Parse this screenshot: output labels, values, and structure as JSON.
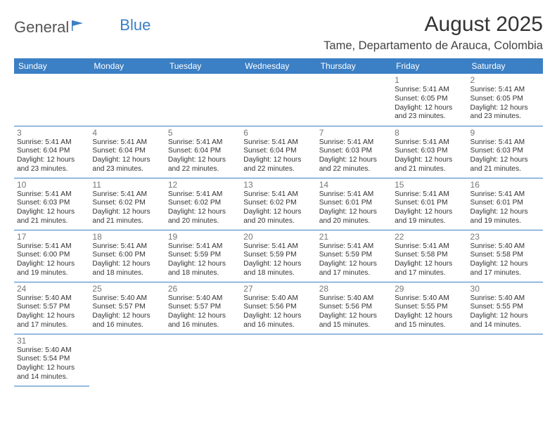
{
  "logo": {
    "text1": "General",
    "text2": "Blue"
  },
  "title": "August 2025",
  "location": "Tame, Departamento de Arauca, Colombia",
  "colors": {
    "header_bg": "#3b7fc4",
    "header_text": "#ffffff",
    "border": "#3b7fc4",
    "daynum": "#777777",
    "body_text": "#333333",
    "background": "#ffffff"
  },
  "day_headers": [
    "Sunday",
    "Monday",
    "Tuesday",
    "Wednesday",
    "Thursday",
    "Friday",
    "Saturday"
  ],
  "first_weekday": 5,
  "num_days": 31,
  "days": {
    "1": {
      "sunrise": "5:41 AM",
      "sunset": "6:05 PM",
      "daylight": "12 hours and 23 minutes."
    },
    "2": {
      "sunrise": "5:41 AM",
      "sunset": "6:05 PM",
      "daylight": "12 hours and 23 minutes."
    },
    "3": {
      "sunrise": "5:41 AM",
      "sunset": "6:04 PM",
      "daylight": "12 hours and 23 minutes."
    },
    "4": {
      "sunrise": "5:41 AM",
      "sunset": "6:04 PM",
      "daylight": "12 hours and 23 minutes."
    },
    "5": {
      "sunrise": "5:41 AM",
      "sunset": "6:04 PM",
      "daylight": "12 hours and 22 minutes."
    },
    "6": {
      "sunrise": "5:41 AM",
      "sunset": "6:04 PM",
      "daylight": "12 hours and 22 minutes."
    },
    "7": {
      "sunrise": "5:41 AM",
      "sunset": "6:03 PM",
      "daylight": "12 hours and 22 minutes."
    },
    "8": {
      "sunrise": "5:41 AM",
      "sunset": "6:03 PM",
      "daylight": "12 hours and 21 minutes."
    },
    "9": {
      "sunrise": "5:41 AM",
      "sunset": "6:03 PM",
      "daylight": "12 hours and 21 minutes."
    },
    "10": {
      "sunrise": "5:41 AM",
      "sunset": "6:03 PM",
      "daylight": "12 hours and 21 minutes."
    },
    "11": {
      "sunrise": "5:41 AM",
      "sunset": "6:02 PM",
      "daylight": "12 hours and 21 minutes."
    },
    "12": {
      "sunrise": "5:41 AM",
      "sunset": "6:02 PM",
      "daylight": "12 hours and 20 minutes."
    },
    "13": {
      "sunrise": "5:41 AM",
      "sunset": "6:02 PM",
      "daylight": "12 hours and 20 minutes."
    },
    "14": {
      "sunrise": "5:41 AM",
      "sunset": "6:01 PM",
      "daylight": "12 hours and 20 minutes."
    },
    "15": {
      "sunrise": "5:41 AM",
      "sunset": "6:01 PM",
      "daylight": "12 hours and 19 minutes."
    },
    "16": {
      "sunrise": "5:41 AM",
      "sunset": "6:01 PM",
      "daylight": "12 hours and 19 minutes."
    },
    "17": {
      "sunrise": "5:41 AM",
      "sunset": "6:00 PM",
      "daylight": "12 hours and 19 minutes."
    },
    "18": {
      "sunrise": "5:41 AM",
      "sunset": "6:00 PM",
      "daylight": "12 hours and 18 minutes."
    },
    "19": {
      "sunrise": "5:41 AM",
      "sunset": "5:59 PM",
      "daylight": "12 hours and 18 minutes."
    },
    "20": {
      "sunrise": "5:41 AM",
      "sunset": "5:59 PM",
      "daylight": "12 hours and 18 minutes."
    },
    "21": {
      "sunrise": "5:41 AM",
      "sunset": "5:59 PM",
      "daylight": "12 hours and 17 minutes."
    },
    "22": {
      "sunrise": "5:41 AM",
      "sunset": "5:58 PM",
      "daylight": "12 hours and 17 minutes."
    },
    "23": {
      "sunrise": "5:40 AM",
      "sunset": "5:58 PM",
      "daylight": "12 hours and 17 minutes."
    },
    "24": {
      "sunrise": "5:40 AM",
      "sunset": "5:57 PM",
      "daylight": "12 hours and 17 minutes."
    },
    "25": {
      "sunrise": "5:40 AM",
      "sunset": "5:57 PM",
      "daylight": "12 hours and 16 minutes."
    },
    "26": {
      "sunrise": "5:40 AM",
      "sunset": "5:57 PM",
      "daylight": "12 hours and 16 minutes."
    },
    "27": {
      "sunrise": "5:40 AM",
      "sunset": "5:56 PM",
      "daylight": "12 hours and 16 minutes."
    },
    "28": {
      "sunrise": "5:40 AM",
      "sunset": "5:56 PM",
      "daylight": "12 hours and 15 minutes."
    },
    "29": {
      "sunrise": "5:40 AM",
      "sunset": "5:55 PM",
      "daylight": "12 hours and 15 minutes."
    },
    "30": {
      "sunrise": "5:40 AM",
      "sunset": "5:55 PM",
      "daylight": "12 hours and 14 minutes."
    },
    "31": {
      "sunrise": "5:40 AM",
      "sunset": "5:54 PM",
      "daylight": "12 hours and 14 minutes."
    }
  },
  "labels": {
    "sunrise": "Sunrise:",
    "sunset": "Sunset:",
    "daylight": "Daylight:"
  }
}
